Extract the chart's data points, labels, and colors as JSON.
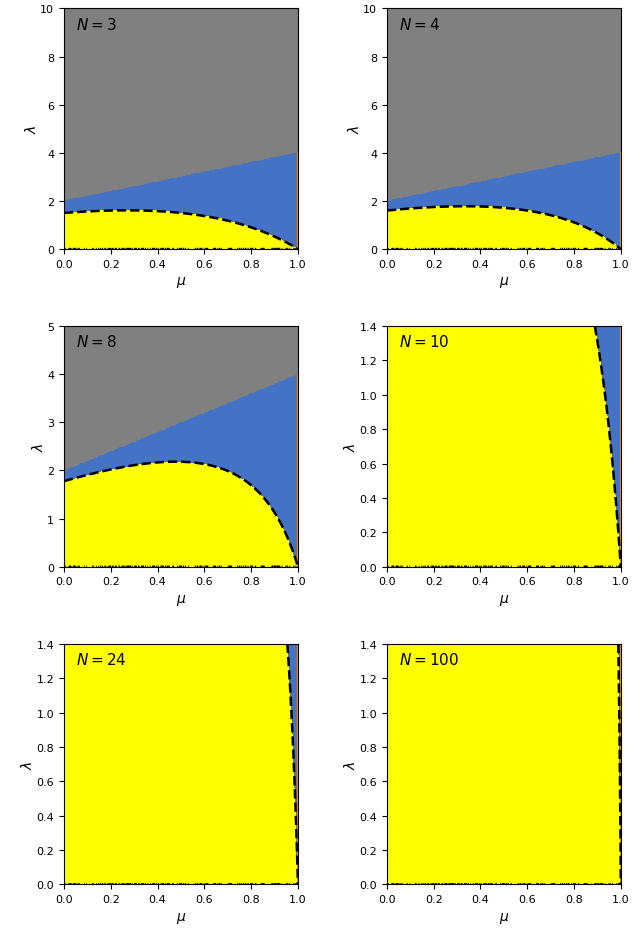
{
  "panels": [
    {
      "N": 3,
      "ylim": [
        0,
        10
      ],
      "yticks": [
        0,
        2,
        4,
        6,
        8,
        10
      ]
    },
    {
      "N": 4,
      "ylim": [
        0,
        10
      ],
      "yticks": [
        0,
        2,
        4,
        6,
        8,
        10
      ]
    },
    {
      "N": 8,
      "ylim": [
        0,
        5
      ],
      "yticks": [
        0,
        1,
        2,
        3,
        4,
        5
      ]
    },
    {
      "N": 10,
      "ylim": [
        0,
        1.4
      ],
      "yticks": [
        0.0,
        0.2,
        0.4,
        0.6,
        0.8,
        1.0,
        1.2,
        1.4
      ]
    },
    {
      "N": 24,
      "ylim": [
        0,
        1.4
      ],
      "yticks": [
        0.0,
        0.2,
        0.4,
        0.6,
        0.8,
        1.0,
        1.2,
        1.4
      ]
    },
    {
      "N": 100,
      "ylim": [
        0,
        1.4
      ],
      "yticks": [
        0.0,
        0.2,
        0.4,
        0.6,
        0.8,
        1.0,
        1.2,
        1.4
      ]
    }
  ],
  "color_yellow": "#ffff00",
  "color_blue": "#4472c4",
  "color_orange": "#ff8c00",
  "color_gray": "#808080",
  "res": 300
}
